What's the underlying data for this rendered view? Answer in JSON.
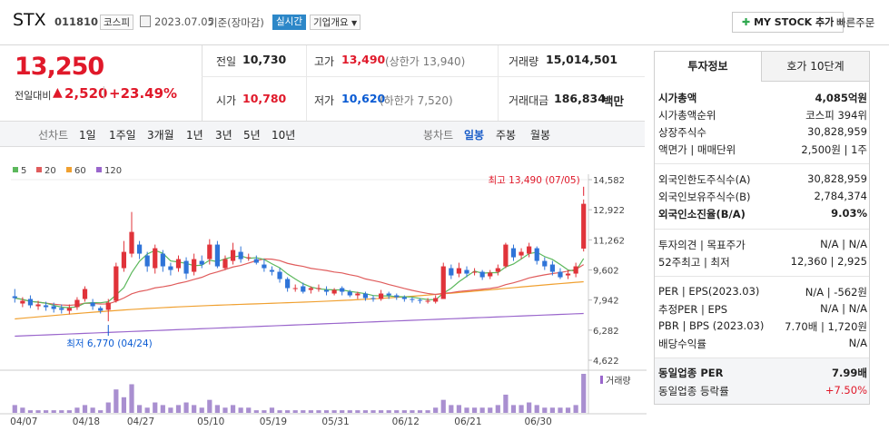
{
  "stock": {
    "name": "STX",
    "code": "011810",
    "market": "코스피",
    "date": "2023.07.05",
    "date_suffix": "기준(장마감)",
    "realtime": "실시간",
    "company_info": "기업개요",
    "my_stock": "MY STOCK 추가",
    "quick_order": "빠른주문"
  },
  "price": {
    "current": "13,250",
    "change_label": "전일대비",
    "change": "2,520",
    "change_pct": "+23.49%"
  },
  "quote": {
    "prev_label": "전일",
    "prev": "10,730",
    "high_label": "고가",
    "high": "13,490",
    "upper_limit": "(상한가 13,940)",
    "volume_label": "거래량",
    "volume": "15,014,501",
    "open_label": "시가",
    "open": "10,780",
    "low_label": "저가",
    "low": "10,620",
    "lower_limit": "(하한가 7,520)",
    "amount_label": "거래대금",
    "amount": "186,834",
    "amount_unit": "백만"
  },
  "periods": {
    "label": "선차트",
    "items": [
      "1일",
      "1주일",
      "3개월",
      "1년",
      "3년",
      "5년",
      "10년"
    ]
  },
  "candle_periods": {
    "label": "봉차트",
    "items": [
      "일봉",
      "주봉",
      "월봉"
    ],
    "active": "일봉"
  },
  "legend": [
    {
      "name": "5",
      "color": "#5cb85c"
    },
    {
      "name": "20",
      "color": "#e05c5c"
    },
    {
      "name": "60",
      "color": "#f0a030"
    },
    {
      "name": "120",
      "color": "#9a66cc"
    }
  ],
  "chart_data": {
    "type": "candlestick",
    "y_ticks": [
      "14,582",
      "12,922",
      "11,262",
      "9,602",
      "7,942",
      "6,282",
      "4,622"
    ],
    "ylim": [
      4622,
      14582
    ],
    "x_ticks": [
      "04/07",
      "04/18",
      "04/27",
      "05/10",
      "05/19",
      "05/31",
      "06/12",
      "06/21",
      "06/30"
    ],
    "high_annotation": "최고 13,490 (07/05)",
    "low_annotation": "최저 6,770 (04/24)",
    "volume_label": "거래량",
    "candles": [
      [
        8150,
        8050,
        8550,
        7800
      ],
      [
        7750,
        7900,
        8100,
        7550
      ],
      [
        8000,
        7650,
        8200,
        7500
      ],
      [
        7600,
        7700,
        7900,
        7400
      ],
      [
        7650,
        7550,
        7850,
        7350
      ],
      [
        7600,
        7450,
        7800,
        7250
      ],
      [
        7500,
        7400,
        7700,
        7200
      ],
      [
        7350,
        7500,
        7700,
        7150
      ],
      [
        7550,
        7950,
        8100,
        7400
      ],
      [
        8000,
        8550,
        8700,
        7850
      ],
      [
        7800,
        7600,
        8000,
        7400
      ],
      [
        7500,
        7350,
        7600,
        7200
      ],
      [
        7400,
        7800,
        8000,
        6770
      ],
      [
        7900,
        9800,
        10000,
        7800
      ],
      [
        9700,
        10600,
        11200,
        9500
      ],
      [
        10500,
        11700,
        12800,
        10300
      ],
      [
        11000,
        10500,
        11200,
        10200
      ],
      [
        10400,
        9800,
        10600,
        9500
      ],
      [
        9700,
        10800,
        11000,
        9400
      ],
      [
        10500,
        9800,
        10700,
        9500
      ],
      [
        9800,
        9600,
        10000,
        9300
      ],
      [
        9700,
        10200,
        10400,
        9500
      ],
      [
        10100,
        9400,
        10300,
        9100
      ],
      [
        9500,
        10200,
        10500,
        9300
      ],
      [
        10100,
        9900,
        10400,
        9700
      ],
      [
        10200,
        11000,
        11300,
        9900
      ],
      [
        11000,
        9800,
        11200,
        9700
      ],
      [
        9700,
        10200,
        10400,
        9600
      ],
      [
        10100,
        10700,
        11100,
        9900
      ],
      [
        10600,
        10200,
        10900,
        10000
      ],
      [
        10300,
        10300,
        10500,
        10100
      ],
      [
        10200,
        10000,
        10400,
        9900
      ],
      [
        9900,
        9700,
        10200,
        9500
      ],
      [
        9600,
        9500,
        9800,
        9300
      ],
      [
        9500,
        9100,
        9700,
        8900
      ],
      [
        9100,
        8600,
        9200,
        8400
      ],
      [
        8600,
        8600,
        8800,
        8400
      ],
      [
        8700,
        8400,
        8900,
        8300
      ],
      [
        8500,
        8600,
        8700,
        8300
      ],
      [
        8600,
        8600,
        8800,
        8400
      ],
      [
        8500,
        8400,
        8700,
        8200
      ],
      [
        8300,
        8500,
        8600,
        8200
      ],
      [
        8600,
        8400,
        8700,
        8200
      ],
      [
        8400,
        8200,
        8500,
        8100
      ],
      [
        8200,
        8300,
        8400,
        8000
      ],
      [
        8300,
        8050,
        8400,
        7900
      ],
      [
        8050,
        8000,
        8200,
        7850
      ],
      [
        8000,
        8300,
        8500,
        7900
      ],
      [
        8300,
        8200,
        8400,
        8000
      ],
      [
        8200,
        8100,
        8300,
        7950
      ],
      [
        8100,
        8000,
        8200,
        7850
      ],
      [
        8000,
        7950,
        8100,
        7800
      ],
      [
        7950,
        7900,
        8050,
        7750
      ],
      [
        7900,
        7900,
        8050,
        7750
      ],
      [
        7850,
        8050,
        8200,
        7750
      ],
      [
        8000,
        9800,
        10000,
        8000
      ],
      [
        9700,
        9300,
        9900,
        9100
      ],
      [
        9400,
        9700,
        10000,
        9200
      ],
      [
        9600,
        9400,
        9800,
        9200
      ],
      [
        9450,
        9500,
        9700,
        9300
      ],
      [
        9500,
        9200,
        9600,
        9050
      ],
      [
        9250,
        9450,
        9600,
        9100
      ],
      [
        9500,
        9700,
        9900,
        9300
      ],
      [
        9800,
        11000,
        11100,
        9700
      ],
      [
        10800,
        10300,
        11000,
        10100
      ],
      [
        10400,
        10600,
        10800,
        10200
      ],
      [
        10500,
        10900,
        11100,
        10300
      ],
      [
        10800,
        10100,
        10900,
        9900
      ],
      [
        10100,
        9800,
        10300,
        9600
      ],
      [
        9900,
        9500,
        10100,
        9300
      ],
      [
        9500,
        9200,
        9700,
        9100
      ],
      [
        9300,
        9400,
        9600,
        9100
      ],
      [
        9400,
        9800,
        10000,
        9200
      ],
      [
        10780,
        13250,
        13490,
        10620
      ]
    ],
    "volume": [
      3,
      2,
      1,
      1,
      1,
      1,
      1,
      1,
      2,
      3,
      2,
      1,
      4,
      9,
      6,
      11,
      3,
      2,
      4,
      3,
      2,
      3,
      4,
      3,
      2,
      5,
      3,
      2,
      3,
      2,
      2,
      1,
      1,
      2,
      1,
      1,
      1,
      1,
      1,
      1,
      1,
      1,
      1,
      1,
      1,
      1,
      1,
      1,
      1,
      1,
      1,
      1,
      1,
      1,
      2,
      5,
      3,
      3,
      2,
      2,
      2,
      2,
      3,
      7,
      3,
      3,
      4,
      3,
      2,
      2,
      2,
      2,
      3,
      15
    ]
  },
  "side": {
    "tab1": "투자정보",
    "tab2": "호가 10단계",
    "rows1": [
      {
        "label": "시가총액",
        "value": "4,085억원",
        "bold": true
      },
      {
        "label": "시가총액순위",
        "value": "코스피 394위"
      },
      {
        "label": "상장주식수",
        "value": "30,828,959"
      },
      {
        "label": "액면가 | 매매단위",
        "value": "2,500원 | 1주"
      }
    ],
    "rows2": [
      {
        "label": "외국인한도주식수(A)",
        "value": "30,828,959"
      },
      {
        "label": "외국인보유주식수(B)",
        "value": "2,784,374"
      },
      {
        "label": "외국인소진율(B/A)",
        "value": "9.03%",
        "bold": true
      }
    ],
    "rows3": [
      {
        "label": "투자의견 | 목표주가",
        "value": "N/A | N/A"
      },
      {
        "label": "52주최고 | 최저",
        "value": "12,360 | 2,925"
      }
    ],
    "rows4": [
      {
        "label": "PER | EPS(2023.03)",
        "value": "N/A | -562원"
      },
      {
        "label": "추정PER | EPS",
        "value": "N/A | N/A"
      },
      {
        "label": "PBR | BPS (2023.03)",
        "value": "7.70배 | 1,720원"
      },
      {
        "label": "배당수익률",
        "value": "N/A"
      }
    ],
    "industry_per_label": "동일업종 PER",
    "industry_per": "7.99배",
    "industry_rate_label": "동일업종 등락률",
    "industry_rate": "+7.50%"
  }
}
